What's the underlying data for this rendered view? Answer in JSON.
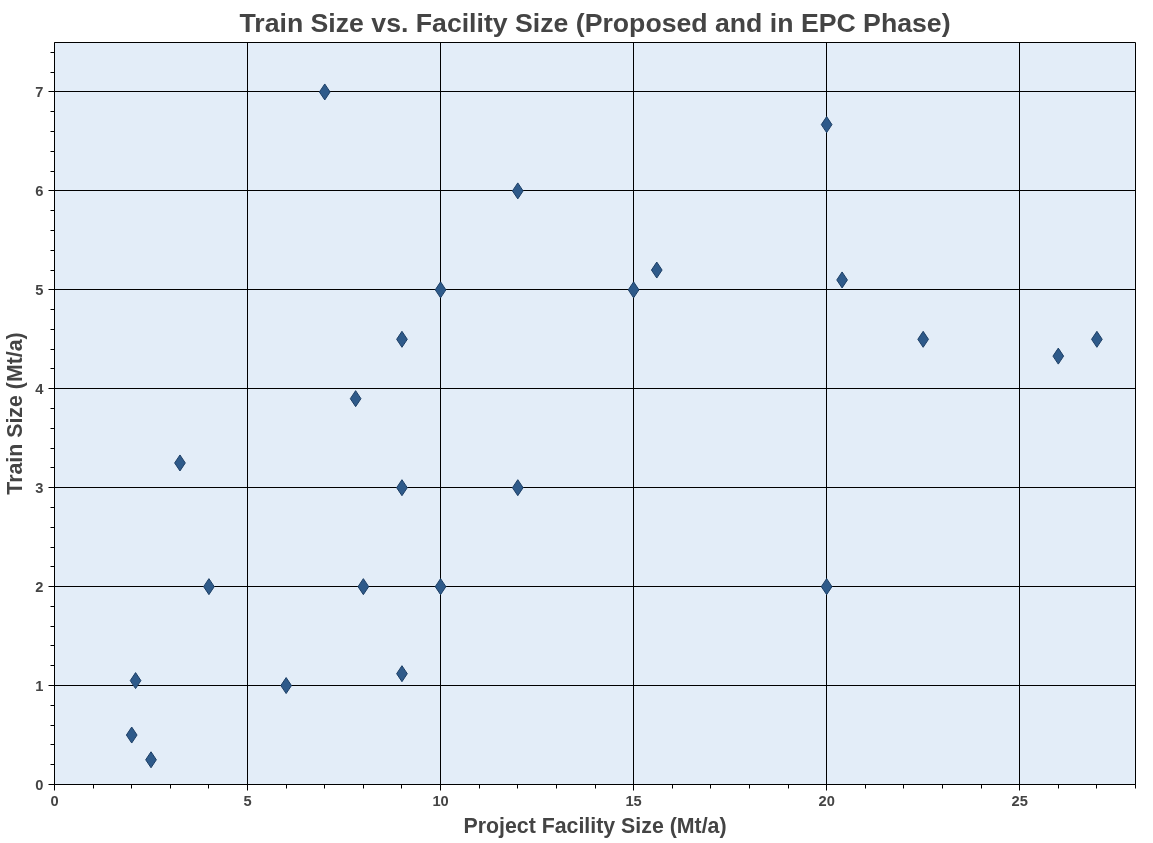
{
  "chart_data": {
    "type": "scatter",
    "title": "Train Size vs. Facility Size (Proposed and in EPC Phase)",
    "xlabel": "Project Facility Size (Mt/a)",
    "ylabel": "Train Size (Mt/a)",
    "x": [
      2.0,
      2.5,
      2.1,
      3.25,
      4.0,
      6.0,
      7.0,
      7.8,
      8.0,
      9.0,
      9.0,
      9.0,
      10.0,
      10.0,
      12.0,
      12.0,
      15.0,
      15.6,
      20.0,
      20.0,
      20.4,
      22.5,
      26.0,
      27.0
    ],
    "series": [
      {
        "color": "#2e5a8a",
        "values": [
          0.5,
          0.25,
          1.05,
          3.25,
          2.0,
          1.0,
          7.0,
          3.9,
          2.0,
          4.5,
          3.0,
          1.12,
          5.0,
          2.0,
          6.0,
          3.0,
          5.0,
          5.2,
          6.67,
          2.0,
          5.1,
          4.5,
          4.33,
          4.5
        ]
      }
    ],
    "xlim": [
      0,
      28
    ],
    "ylim": [
      0,
      7.5
    ],
    "xticks": [
      0,
      5,
      10,
      15,
      20,
      25
    ],
    "yticks": [
      0,
      1,
      2,
      3,
      4,
      5,
      6,
      7
    ],
    "grid": true,
    "marker": "diamond"
  }
}
